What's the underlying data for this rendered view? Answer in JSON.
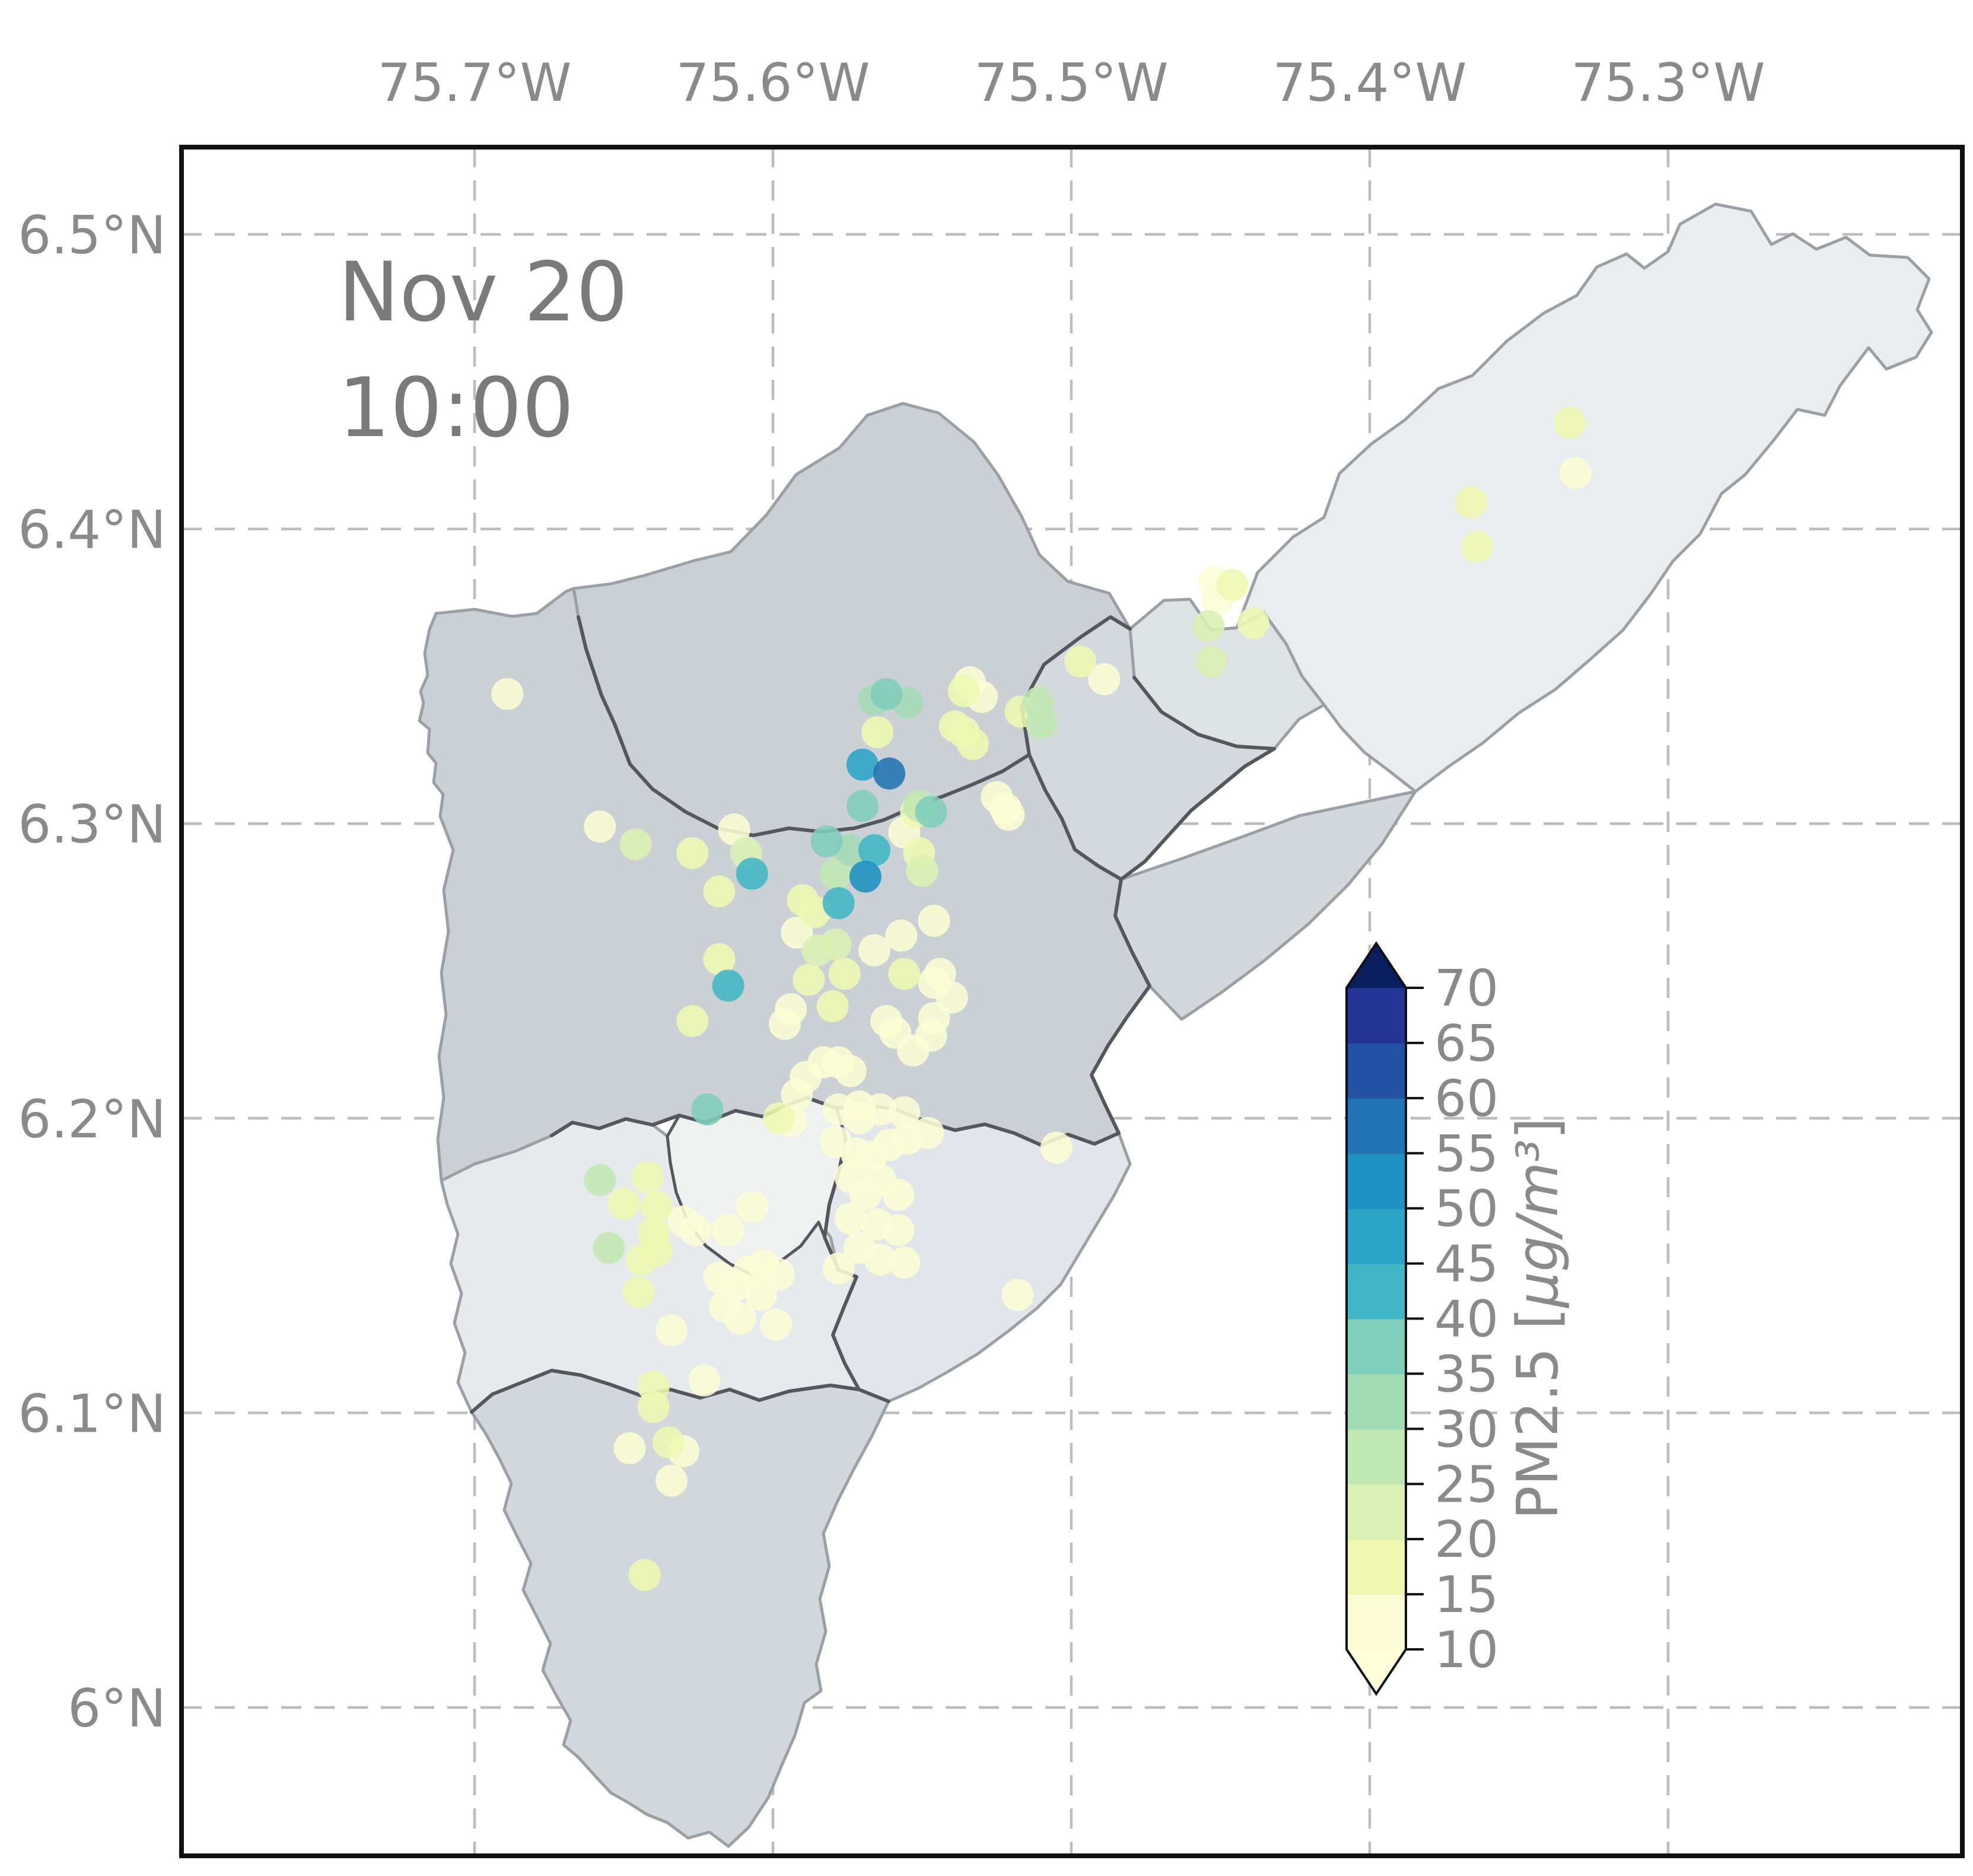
{
  "figure": {
    "timestamp_line1": "Nov 20",
    "timestamp_line2": "10:00"
  },
  "axes": {
    "x_ticks": [
      {
        "label": "75.7°W",
        "lon": -75.7
      },
      {
        "label": "75.6°W",
        "lon": -75.6
      },
      {
        "label": "75.5°W",
        "lon": -75.5
      },
      {
        "label": "75.4°W",
        "lon": -75.4
      },
      {
        "label": "75.3°W",
        "lon": -75.3
      }
    ],
    "y_ticks": [
      {
        "label": "6.5°N",
        "lat": 6.5
      },
      {
        "label": "6.4°N",
        "lat": 6.4
      },
      {
        "label": "6.3°N",
        "lat": 6.3
      },
      {
        "label": "6.2°N",
        "lat": 6.2
      },
      {
        "label": "6.1°N",
        "lat": 6.1
      },
      {
        "label": "6°N",
        "lat": 6.0
      }
    ]
  },
  "chart_data": {
    "type": "scatter",
    "title": "",
    "annotation": "Nov 20 10:00",
    "x_range": [
      -75.798,
      -75.201
    ],
    "y_range": [
      5.95,
      6.53
    ],
    "grid": true,
    "colorbar": {
      "label": "PM2.5 [μg/m³]",
      "vmin": 10,
      "vmax": 70,
      "bin_size": 5,
      "orientation": "vertical",
      "extend": "both",
      "ticks": [
        10,
        15,
        20,
        25,
        30,
        35,
        40,
        45,
        50,
        55,
        60,
        65,
        70
      ],
      "band_colors": [
        "#fcfdd5",
        "#eef8b2",
        "#daf0b4",
        "#c1e7b4",
        "#a3dbb7",
        "#7fcdbb",
        "#41b6c4",
        "#2aa3c6",
        "#1d91c0",
        "#2173b3",
        "#2451a3",
        "#253494"
      ],
      "under_color": "#ffffd9",
      "over_color": "#0b1f5e"
    },
    "points_format": [
      "lon",
      "lat",
      "pm25"
    ],
    "points": [
      [
        -75.566,
        6.342,
        31
      ],
      [
        -75.562,
        6.344,
        38
      ],
      [
        -75.555,
        6.341,
        31
      ],
      [
        -75.565,
        6.331,
        16
      ],
      [
        -75.57,
        6.32,
        47
      ],
      [
        -75.561,
        6.317,
        56
      ],
      [
        -75.57,
        6.306,
        36
      ],
      [
        -75.582,
        6.294,
        38
      ],
      [
        -75.574,
        6.291,
        31
      ],
      [
        -75.566,
        6.291,
        41
      ],
      [
        -75.569,
        6.282,
        52
      ],
      [
        -75.552,
        6.304,
        17
      ],
      [
        -75.551,
        6.306,
        28
      ],
      [
        -75.547,
        6.304,
        38
      ],
      [
        -75.556,
        6.297,
        12
      ],
      [
        -75.551,
        6.29,
        18
      ],
      [
        -75.55,
        6.284,
        21
      ],
      [
        -75.534,
        6.348,
        13
      ],
      [
        -75.53,
        6.343,
        12
      ],
      [
        -75.536,
        6.345,
        17
      ],
      [
        -75.539,
        6.333,
        18
      ],
      [
        -75.525,
        6.309,
        12
      ],
      [
        -75.521,
        6.303,
        14
      ],
      [
        -75.497,
        6.355,
        16
      ],
      [
        -75.489,
        6.349,
        12
      ],
      [
        -75.511,
        6.341,
        27
      ],
      [
        -75.517,
        6.338,
        18
      ],
      [
        -75.51,
        6.334,
        26
      ],
      [
        -75.536,
        6.331,
        18
      ],
      [
        -75.533,
        6.327,
        18
      ],
      [
        -75.522,
        6.305,
        13
      ],
      [
        -75.452,
        6.382,
        12
      ],
      [
        -75.451,
        6.376,
        12
      ],
      [
        -75.446,
        6.381,
        17
      ],
      [
        -75.454,
        6.367,
        23
      ],
      [
        -75.439,
        6.368,
        16
      ],
      [
        -75.453,
        6.355,
        23
      ],
      [
        -75.366,
        6.409,
        18
      ],
      [
        -75.364,
        6.394,
        18
      ],
      [
        -75.333,
        6.436,
        18
      ],
      [
        -75.331,
        6.419,
        12
      ],
      [
        -75.689,
        6.344,
        13
      ],
      [
        -75.658,
        6.299,
        12
      ],
      [
        -75.646,
        6.293,
        21
      ],
      [
        -75.627,
        6.29,
        18
      ],
      [
        -75.613,
        6.298,
        13
      ],
      [
        -75.609,
        6.29,
        24
      ],
      [
        -75.607,
        6.283,
        41
      ],
      [
        -75.618,
        6.277,
        19
      ],
      [
        -75.615,
        6.245,
        41
      ],
      [
        -75.618,
        6.254,
        19
      ],
      [
        -75.627,
        6.233,
        19
      ],
      [
        -75.622,
        6.203,
        36
      ],
      [
        -75.598,
        6.2,
        16
      ],
      [
        -75.592,
        6.263,
        12
      ],
      [
        -75.59,
        6.274,
        17
      ],
      [
        -75.579,
        6.283,
        28
      ],
      [
        -75.578,
        6.273,
        41
      ],
      [
        -75.586,
        6.27,
        17
      ],
      [
        -75.585,
        6.257,
        24
      ],
      [
        -75.579,
        6.259,
        22
      ],
      [
        -75.576,
        6.249,
        19
      ],
      [
        -75.588,
        6.247,
        16
      ],
      [
        -75.58,
        6.238,
        18
      ],
      [
        -75.566,
        6.257,
        12
      ],
      [
        -75.557,
        6.262,
        12
      ],
      [
        -75.546,
        6.267,
        13
      ],
      [
        -75.556,
        6.249,
        16
      ],
      [
        -75.544,
        6.249,
        12
      ],
      [
        -75.562,
        6.233,
        11
      ],
      [
        -75.559,
        6.229,
        11
      ],
      [
        -75.553,
        6.223,
        11
      ],
      [
        -75.547,
        6.228,
        12
      ],
      [
        -75.546,
        6.234,
        12
      ],
      [
        -75.54,
        6.241,
        12
      ],
      [
        -75.546,
        6.246,
        12
      ],
      [
        -75.594,
        6.237,
        12
      ],
      [
        -75.596,
        6.232,
        13
      ],
      [
        -75.589,
        6.214,
        11
      ],
      [
        -75.583,
        6.219,
        11
      ],
      [
        -75.578,
        6.219,
        11
      ],
      [
        -75.574,
        6.216,
        12
      ],
      [
        -75.592,
        6.208,
        12
      ],
      [
        -75.578,
        6.203,
        11
      ],
      [
        -75.571,
        6.204,
        12
      ],
      [
        -75.564,
        6.203,
        11
      ],
      [
        -75.571,
        6.2,
        11
      ],
      [
        -75.556,
        6.202,
        12
      ],
      [
        -75.555,
        6.193,
        11
      ],
      [
        -75.548,
        6.195,
        12
      ],
      [
        -75.579,
        6.192,
        12
      ],
      [
        -75.572,
        6.188,
        12
      ],
      [
        -75.567,
        6.187,
        11
      ],
      [
        -75.561,
        6.191,
        11
      ],
      [
        -75.594,
        6.199,
        12
      ],
      [
        -75.505,
        6.19,
        12
      ],
      [
        -75.574,
        6.18,
        12
      ],
      [
        -75.569,
        6.174,
        11
      ],
      [
        -75.564,
        6.179,
        11
      ],
      [
        -75.558,
        6.174,
        12
      ],
      [
        -75.574,
        6.166,
        11
      ],
      [
        -75.565,
        6.164,
        12
      ],
      [
        -75.558,
        6.162,
        11
      ],
      [
        -75.571,
        6.156,
        11
      ],
      [
        -75.564,
        6.152,
        12
      ],
      [
        -75.578,
        6.149,
        13
      ],
      [
        -75.556,
        6.151,
        12
      ],
      [
        -75.518,
        6.14,
        12
      ],
      [
        -75.658,
        6.179,
        27
      ],
      [
        -75.655,
        6.156,
        25
      ],
      [
        -75.642,
        6.18,
        17
      ],
      [
        -75.65,
        6.171,
        16
      ],
      [
        -75.639,
        6.17,
        18
      ],
      [
        -75.64,
        6.161,
        16
      ],
      [
        -75.644,
        6.152,
        15
      ],
      [
        -75.645,
        6.141,
        15
      ],
      [
        -75.639,
        6.155,
        16
      ],
      [
        -75.63,
        6.165,
        14
      ],
      [
        -75.626,
        6.162,
        14
      ],
      [
        -75.634,
        6.128,
        13
      ],
      [
        -75.623,
        6.111,
        12
      ],
      [
        -75.64,
        6.102,
        18
      ],
      [
        -75.615,
        6.162,
        13
      ],
      [
        -75.607,
        6.17,
        12
      ],
      [
        -75.618,
        6.146,
        11
      ],
      [
        -75.613,
        6.143,
        11
      ],
      [
        -75.608,
        6.148,
        12
      ],
      [
        -75.603,
        6.15,
        12
      ],
      [
        -75.598,
        6.147,
        11
      ],
      [
        -75.604,
        6.14,
        11
      ],
      [
        -75.616,
        6.136,
        11
      ],
      [
        -75.611,
        6.132,
        11
      ],
      [
        -75.599,
        6.13,
        13
      ],
      [
        -75.64,
        6.109,
        18
      ],
      [
        -75.648,
        6.088,
        13
      ],
      [
        -75.635,
        6.09,
        18
      ],
      [
        -75.63,
        6.087,
        13
      ],
      [
        -75.634,
        6.077,
        13
      ],
      [
        -75.643,
        6.045,
        18
      ]
    ]
  }
}
